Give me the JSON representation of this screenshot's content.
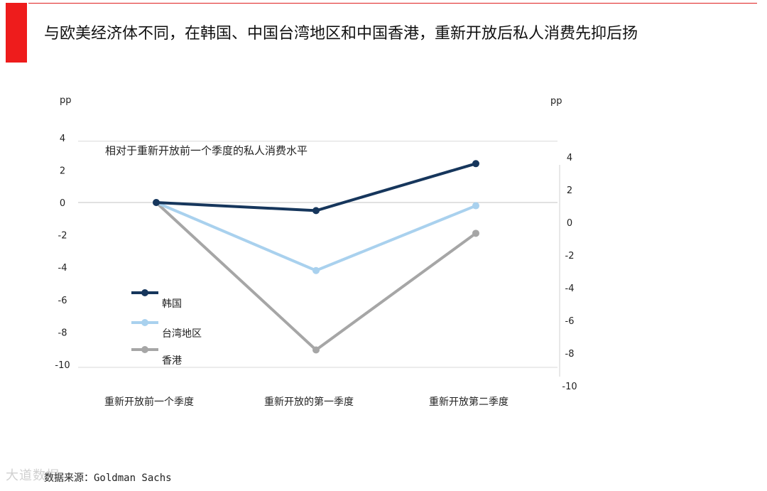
{
  "slide": {
    "title": "与欧美经济体不同，在韩国、中国台湾地区和中国香港，重新开放后私人消费先抑后扬",
    "source_label": "数据来源：",
    "source_value": "Goldman Sachs",
    "watermark": "大道数据"
  },
  "colors": {
    "accent_red": "#ee1c1c",
    "korea": "#16365c",
    "taiwan": "#a9d1ee",
    "hongkong": "#a6a6a6"
  },
  "chart_data": {
    "type": "line",
    "title": "相对于重新开放前一个季度的私人消费水平",
    "categories": [
      "重新开放前一个季度",
      "重新开放的第一季度",
      "重新开放第二季度"
    ],
    "series": [
      {
        "name": "韩国",
        "values": [
          0,
          -0.5,
          2.4
        ],
        "color": "#16365c"
      },
      {
        "name": "台湾地区",
        "values": [
          0,
          -4.2,
          -0.2
        ],
        "color": "#a9d1ee"
      },
      {
        "name": "香港",
        "values": [
          0,
          -9.1,
          -1.9
        ],
        "color": "#a6a6a6"
      }
    ],
    "y_left": {
      "unit": "pp",
      "ticks": [
        "4",
        "2",
        "0",
        "-2",
        "-4",
        "-6",
        "-8",
        "-10"
      ],
      "ylim": [
        -10,
        4
      ]
    },
    "y_right": {
      "unit": "pp",
      "ticks": [
        "4",
        "2",
        "0",
        "-2",
        "-4",
        "-6",
        "-8",
        "-10"
      ],
      "ylim": [
        -10,
        4
      ]
    },
    "legend": "left-bottom",
    "grid": false
  }
}
